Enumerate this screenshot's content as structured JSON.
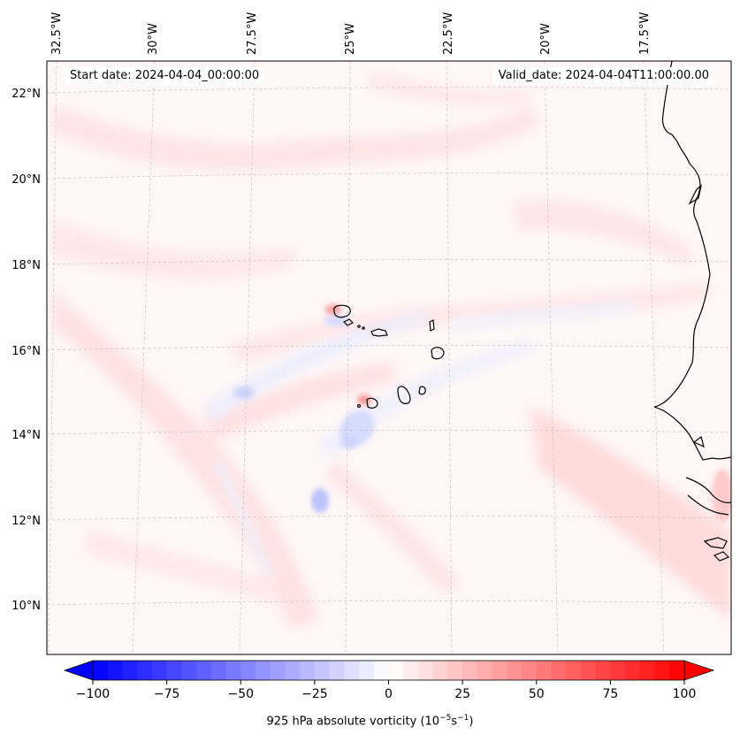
{
  "start_date": "Start date: 2024-04-04_00:00:00",
  "valid_date": "Valid_date: 2024-04-04T11:00:00.00",
  "lon_labels": [
    "32.5°W",
    "30°W",
    "27.5°W",
    "25°W",
    "22.5°W",
    "20°W",
    "17.5°W"
  ],
  "lat_labels": [
    "22°N",
    "20°N",
    "18°N",
    "16°N",
    "14°N",
    "12°N",
    "10°N"
  ],
  "colorbar": {
    "min": -100,
    "max": 100,
    "ticks": [
      "−100",
      "−75",
      "−50",
      "−25",
      "0",
      "25",
      "50",
      "75",
      "100"
    ],
    "label_main": "925 hPa absolute vorticity (10",
    "label_exp1": "−5",
    "label_mid": "s",
    "label_exp2": "−1",
    "label_end": ")",
    "neg_color": "#0000ff",
    "pos_color": "#ff0000",
    "zero_color": "#ffffff"
  }
}
